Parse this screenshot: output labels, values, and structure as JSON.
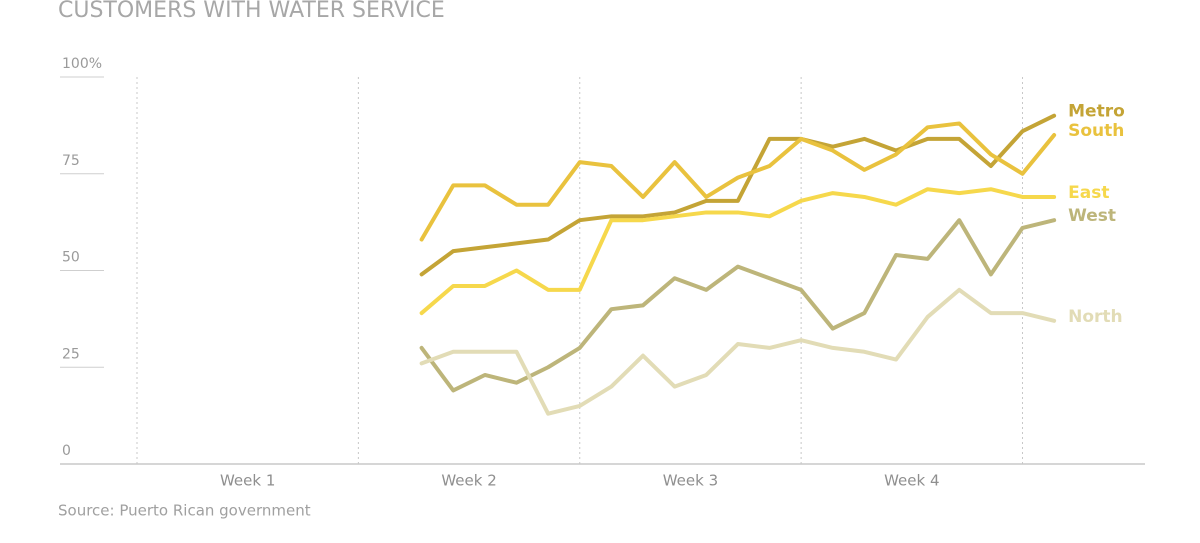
{
  "chart_data": {
    "type": "line",
    "title": "CUSTOMERS WITH WATER SERVICE",
    "source": "Source: Puerto Rican government",
    "x": [
      9,
      10,
      11,
      12,
      13,
      14,
      15,
      16,
      17,
      18,
      19,
      20,
      21,
      22,
      23,
      24,
      25,
      26,
      27,
      28,
      29
    ],
    "xlim": [
      0,
      32
    ],
    "xticks": [
      {
        "value": 3.5,
        "label": "Week 1"
      },
      {
        "value": 10.5,
        "label": "Week 2"
      },
      {
        "value": 17.5,
        "label": "Week 3"
      },
      {
        "value": 24.5,
        "label": "Week 4"
      }
    ],
    "xgrid": [
      0,
      7,
      14,
      21,
      28
    ],
    "ylim": [
      0,
      100
    ],
    "yticks": [
      0,
      25,
      50,
      75,
      {
        "value": 100,
        "label": "100%"
      }
    ],
    "series": [
      {
        "name": "Metro",
        "color": "#c4a436",
        "values": [
          49,
          55,
          56,
          57,
          58,
          63,
          64,
          64,
          65,
          68,
          68,
          84,
          84,
          82,
          84,
          81,
          84,
          84,
          77,
          86,
          90
        ]
      },
      {
        "name": "South",
        "color": "#e9c23e",
        "values": [
          58,
          72,
          72,
          67,
          67,
          78,
          77,
          69,
          78,
          69,
          74,
          77,
          84,
          81,
          76,
          80,
          87,
          88,
          80,
          75,
          85
        ]
      },
      {
        "name": "East",
        "color": "#f6d84c",
        "values": [
          39,
          46,
          46,
          50,
          45,
          45,
          63,
          63,
          64,
          65,
          65,
          64,
          68,
          70,
          69,
          67,
          71,
          70,
          71,
          69,
          69
        ]
      },
      {
        "name": "West",
        "color": "#bdb57a",
        "values": [
          30,
          19,
          23,
          21,
          25,
          30,
          40,
          41,
          48,
          45,
          51,
          48,
          45,
          35,
          39,
          54,
          53,
          63,
          49,
          61,
          63
        ]
      },
      {
        "name": "North",
        "color": "#e2dcb6",
        "values": [
          26,
          29,
          29,
          29,
          13,
          15,
          20,
          28,
          20,
          23,
          31,
          30,
          32,
          30,
          29,
          27,
          38,
          45,
          39,
          39,
          37
        ]
      }
    ]
  }
}
